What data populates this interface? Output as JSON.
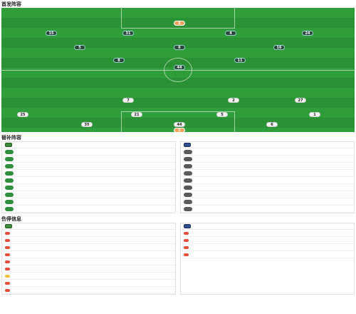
{
  "lineup": {
    "title": "首发阵容",
    "subtitle": "",
    "home": {
      "name": "",
      "formation": ""
    },
    "away": {
      "name": "",
      "formation": ""
    },
    "home_players": [
      {
        "no": "1",
        "name": "",
        "rating": "",
        "shirt": "gk"
      },
      {
        "no": "15",
        "name": "",
        "rating": "",
        "shirt": "dark"
      },
      {
        "no": "31",
        "name": "",
        "rating": "",
        "shirt": "dark"
      },
      {
        "no": "4",
        "name": "",
        "rating": "",
        "shirt": "dark"
      },
      {
        "no": "24",
        "name": "",
        "rating": "",
        "shirt": "dark"
      },
      {
        "no": "5",
        "name": "",
        "rating": "",
        "shirt": "dark"
      },
      {
        "no": "6",
        "name": "",
        "rating": "",
        "shirt": "dark"
      },
      {
        "no": "16",
        "name": "",
        "rating": "",
        "shirt": "dark"
      },
      {
        "no": "8",
        "name": "",
        "rating": "",
        "shirt": "dark"
      },
      {
        "no": "11",
        "name": "",
        "rating": "",
        "shirt": "dark"
      },
      {
        "no": "44",
        "name": "",
        "rating": "",
        "shirt": "dark"
      }
    ],
    "away_players": [
      {
        "no": "7",
        "name": "",
        "rating": "",
        "shirt": "light"
      },
      {
        "no": "2",
        "name": "",
        "rating": "",
        "shirt": "light"
      },
      {
        "no": "27",
        "name": "",
        "rating": "",
        "shirt": "light"
      },
      {
        "no": "25",
        "name": "",
        "rating": "",
        "shirt": "light"
      },
      {
        "no": "21",
        "name": "",
        "rating": "",
        "shirt": "light"
      },
      {
        "no": "5",
        "name": "",
        "rating": "",
        "shirt": "light"
      },
      {
        "no": "1",
        "name": "",
        "rating": "",
        "shirt": "light"
      },
      {
        "no": "35",
        "name": "",
        "rating": "",
        "shirt": "light"
      },
      {
        "no": "44",
        "name": "",
        "rating": "",
        "shirt": "light"
      },
      {
        "no": "6",
        "name": "",
        "rating": "",
        "shirt": "light"
      },
      {
        "no": "1",
        "name": "",
        "rating": "",
        "shirt": "gk"
      }
    ]
  },
  "subs": {
    "title": "替补阵容",
    "home_team": "",
    "away_team": "",
    "home": [
      {
        "no": "",
        "name": "",
        "pos": "",
        "tag": ""
      },
      {
        "no": "",
        "name": "",
        "pos": "",
        "tag": ""
      },
      {
        "no": "",
        "name": "",
        "pos": "",
        "tag": ""
      },
      {
        "no": "",
        "name": "",
        "pos": "",
        "tag": ""
      },
      {
        "no": "",
        "name": "",
        "pos": "",
        "tag": ""
      },
      {
        "no": "",
        "name": "",
        "pos": "",
        "tag": ""
      },
      {
        "no": "",
        "name": "",
        "pos": "",
        "tag": ""
      },
      {
        "no": "",
        "name": "",
        "pos": "",
        "tag": ""
      },
      {
        "no": "",
        "name": "",
        "pos": "",
        "tag": ""
      }
    ],
    "away": [
      {
        "no": "",
        "name": "",
        "pos": "",
        "tag": ""
      },
      {
        "no": "",
        "name": "",
        "pos": "",
        "tag": ""
      },
      {
        "no": "",
        "name": "",
        "pos": "",
        "tag": ""
      },
      {
        "no": "",
        "name": "",
        "pos": "",
        "tag": ""
      },
      {
        "no": "",
        "name": "",
        "pos": "",
        "tag": ""
      },
      {
        "no": "",
        "name": "",
        "pos": "",
        "tag": ""
      },
      {
        "no": "",
        "name": "",
        "pos": "",
        "tag": ""
      },
      {
        "no": "",
        "name": "",
        "pos": "",
        "tag": ""
      },
      {
        "no": "",
        "name": "",
        "pos": "",
        "tag": ""
      }
    ]
  },
  "injuries": {
    "title": "伤停信息",
    "home_team": "",
    "away_team": "",
    "home": [
      {
        "name": "",
        "status": "",
        "kind": "red"
      },
      {
        "name": "",
        "status": "",
        "kind": "red"
      },
      {
        "name": "",
        "status": "",
        "kind": "red"
      },
      {
        "name": "",
        "status": "",
        "kind": "red"
      },
      {
        "name": "",
        "status": "",
        "kind": "red"
      },
      {
        "name": "",
        "status": "",
        "kind": "red"
      },
      {
        "name": "",
        "status": "",
        "kind": "yel"
      },
      {
        "name": "",
        "status": "",
        "kind": "red"
      },
      {
        "name": "",
        "status": "",
        "kind": "red"
      }
    ],
    "away": [
      {
        "name": "",
        "status": "",
        "kind": "red"
      },
      {
        "name": "",
        "status": "",
        "kind": "red"
      },
      {
        "name": "",
        "status": "",
        "kind": "red"
      },
      {
        "name": "",
        "status": "",
        "kind": "red"
      }
    ]
  },
  "colors": {
    "pitch": "#2f9d3a",
    "home_shirt": "#1d6a2a",
    "accent": "#2f8f3c"
  }
}
